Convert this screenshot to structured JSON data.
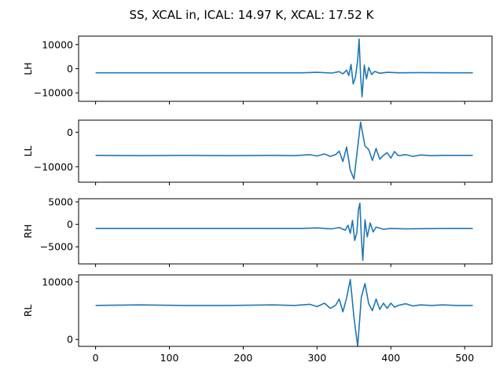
{
  "chart_data": {
    "type": "line",
    "title": "SS, XCAL in, ICAL: 14.97 K, XCAL: 17.52 K",
    "xlim": [
      -23,
      537
    ],
    "xticks": [
      0,
      100,
      200,
      300,
      400,
      500
    ],
    "xtick_labels": [
      "0",
      "100",
      "200",
      "300",
      "400",
      "500"
    ],
    "xlabel": "",
    "grid": false,
    "sharex": true,
    "subplots": [
      {
        "ylabel": "LH",
        "ylim": [
          -13500,
          13500
        ],
        "yticks": [
          10000,
          0,
          -10000
        ],
        "ytick_labels": [
          "10000",
          "0",
          "−10000"
        ],
        "baseline": -1700,
        "peak_index": 357,
        "peak_value": 12300,
        "trough_value": -11600,
        "x": [
          0,
          100,
          200,
          280,
          300,
          320,
          330,
          335,
          340,
          343,
          346,
          349,
          352,
          355,
          357,
          359,
          361,
          364,
          367,
          370,
          374,
          378,
          385,
          395,
          410,
          440,
          480,
          511
        ],
        "y": [
          -1700,
          -1700,
          -1700,
          -1700,
          -1500,
          -1800,
          -1200,
          -2100,
          -600,
          -2800,
          1800,
          -6300,
          -3600,
          3600,
          12300,
          -3000,
          -11600,
          1500,
          -4200,
          500,
          -2400,
          -1100,
          -1900,
          -1500,
          -1700,
          -1600,
          -1700,
          -1700
        ]
      },
      {
        "ylabel": "LL",
        "ylim": [
          -14500,
          3500
        ],
        "yticks": [
          0,
          -10000
        ],
        "ytick_labels": [
          "0",
          "−10000"
        ],
        "baseline": -6700,
        "peak_index": 359,
        "peak_value": 2900,
        "trough_value": -13600,
        "x": [
          0,
          60,
          120,
          180,
          240,
          270,
          290,
          300,
          310,
          318,
          325,
          330,
          335,
          340,
          345,
          350,
          359,
          365,
          370,
          375,
          380,
          385,
          390,
          395,
          400,
          405,
          410,
          420,
          430,
          440,
          455,
          470,
          490,
          511
        ],
        "y": [
          -6700,
          -6800,
          -6700,
          -6800,
          -6700,
          -6800,
          -6500,
          -6900,
          -6300,
          -7000,
          -6500,
          -5500,
          -8500,
          -4300,
          -11000,
          -13600,
          2900,
          -4000,
          -5000,
          -8200,
          -4700,
          -7800,
          -6700,
          -5900,
          -7500,
          -5600,
          -6800,
          -6500,
          -7000,
          -6600,
          -6800,
          -6700,
          -6700,
          -6700
        ]
      },
      {
        "ylabel": "RH",
        "ylim": [
          -8800,
          5700
        ],
        "yticks": [
          5000,
          0,
          -5000
        ],
        "ytick_labels": [
          "5000",
          "0",
          "−5000"
        ],
        "baseline": -900,
        "peak_index": 358,
        "peak_value": 4700,
        "trough_value": -8000,
        "x": [
          0,
          100,
          200,
          280,
          300,
          320,
          330,
          338,
          342,
          345,
          348,
          351,
          354,
          356,
          358,
          360,
          362,
          365,
          368,
          372,
          376,
          380,
          390,
          400,
          420,
          470,
          511
        ],
        "y": [
          -900,
          -900,
          -900,
          -900,
          -800,
          -1000,
          -700,
          -1300,
          -200,
          -2000,
          900,
          -3600,
          -1800,
          3200,
          4700,
          -2600,
          -8000,
          1000,
          -2800,
          300,
          -1700,
          -600,
          -1100,
          -900,
          -1000,
          -900,
          -900
        ]
      },
      {
        "ylabel": "RL",
        "ylim": [
          -1200,
          11200
        ],
        "yticks": [
          10000,
          0
        ],
        "ytick_labels": [
          "10000",
          "0"
        ],
        "baseline": 5900,
        "peak_index": 345,
        "peak_value": 10400,
        "trough_value": -1200,
        "x": [
          0,
          60,
          120,
          180,
          240,
          270,
          290,
          300,
          310,
          318,
          325,
          330,
          335,
          340,
          345,
          350,
          355,
          360,
          365,
          370,
          375,
          380,
          385,
          390,
          395,
          400,
          405,
          410,
          420,
          430,
          440,
          455,
          470,
          490,
          511
        ],
        "y": [
          5900,
          6000,
          5900,
          5900,
          6000,
          5900,
          6100,
          5700,
          6300,
          5400,
          5900,
          7000,
          4800,
          7200,
          10400,
          3800,
          -1200,
          7300,
          9700,
          6200,
          5000,
          7000,
          5200,
          6300,
          5400,
          6300,
          5600,
          5900,
          6200,
          5800,
          6000,
          5900,
          6000,
          5900,
          5900
        ]
      }
    ]
  }
}
